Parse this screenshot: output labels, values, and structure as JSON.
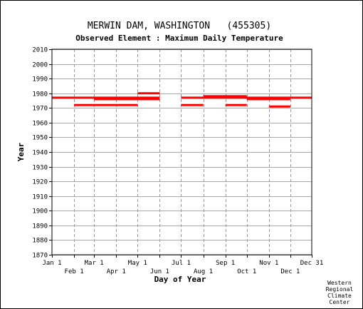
{
  "chart_data": {
    "type": "scatter",
    "title": "MERWIN DAM, WASHINGTON   (455305)",
    "subtitle": "Observed Element : Maximum Daily Temperature",
    "xlabel": "Day of Year",
    "ylabel": "Year",
    "credit": [
      "Western",
      "Regional",
      "Climate",
      "Center"
    ],
    "xlim": [
      1,
      365
    ],
    "ylim": [
      1870,
      2010
    ],
    "grid": true,
    "x_ticks_top": [
      {
        "label": "Jan 1",
        "day": 1
      },
      {
        "label": "Mar 1",
        "day": 60
      },
      {
        "label": "May 1",
        "day": 121
      },
      {
        "label": "Jul 1",
        "day": 182
      },
      {
        "label": "Sep 1",
        "day": 244
      },
      {
        "label": "Nov 1",
        "day": 305
      },
      {
        "label": "Dec 31",
        "day": 365
      }
    ],
    "x_ticks_bottom": [
      {
        "label": "Feb 1",
        "day": 32
      },
      {
        "label": "Apr 1",
        "day": 91
      },
      {
        "label": "Jun 1",
        "day": 152
      },
      {
        "label": "Aug 1",
        "day": 213
      },
      {
        "label": "Oct 1",
        "day": 274
      },
      {
        "label": "Dec 1",
        "day": 335
      }
    ],
    "y_ticks": [
      1870,
      1880,
      1890,
      1900,
      1910,
      1920,
      1930,
      1940,
      1950,
      1960,
      1970,
      1980,
      1990,
      2000,
      2010
    ],
    "series_color": "#ff0000",
    "observation_segments": [
      {
        "year": 1977,
        "start_day": 1,
        "end_day": 152
      },
      {
        "year": 1977,
        "start_day": 182,
        "end_day": 365
      },
      {
        "year": 1976,
        "start_day": 60,
        "end_day": 152
      },
      {
        "year": 1976,
        "start_day": 274,
        "end_day": 335
      },
      {
        "year": 1978,
        "start_day": 213,
        "end_day": 274
      },
      {
        "year": 1972,
        "start_day": 32,
        "end_day": 121
      },
      {
        "year": 1972,
        "start_day": 182,
        "end_day": 213
      },
      {
        "year": 1972,
        "start_day": 244,
        "end_day": 274
      },
      {
        "year": 1971,
        "start_day": 305,
        "end_day": 335
      },
      {
        "year": 1980,
        "start_day": 121,
        "end_day": 152
      }
    ]
  }
}
